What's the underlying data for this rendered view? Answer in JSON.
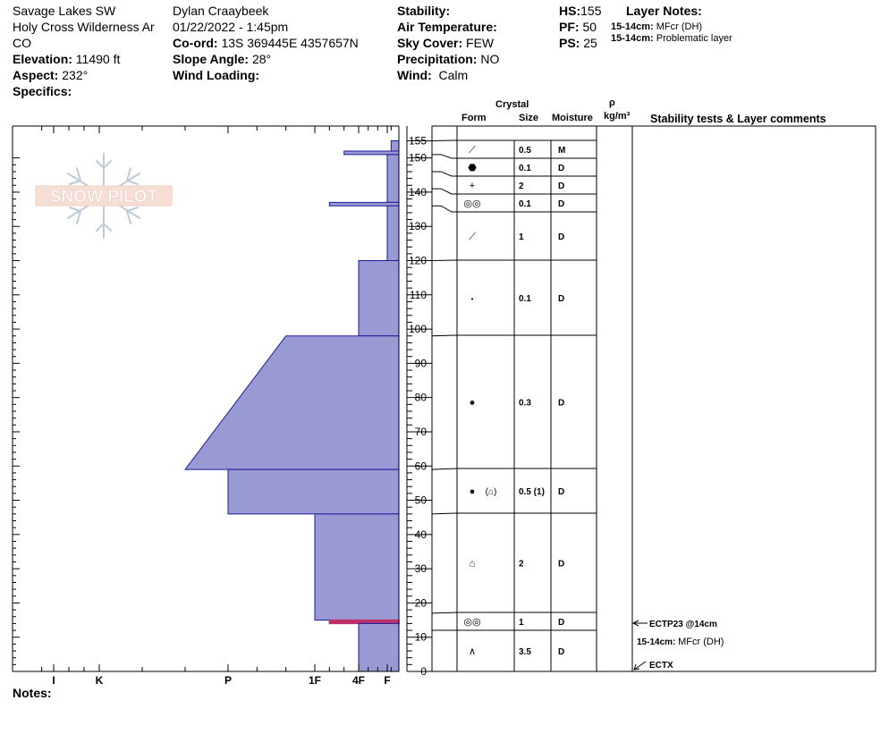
{
  "header": {
    "location": "Savage Lakes SW",
    "range": "Holy Cross Wilderness Ar",
    "state": "CO",
    "elevation_label": "Elevation:",
    "elevation": "11490 ft",
    "aspect_label": "Aspect:",
    "aspect": "232°",
    "specifics_label": "Specifics:",
    "observer": "Dylan Craaybeek",
    "datetime": "01/22/2022 - 1:45pm",
    "coord_label": "Co-ord:",
    "coord": "13S 369445E 4357657N",
    "slope_label": "Slope Angle:",
    "slope": "28°",
    "wind_loading_label": "Wind Loading:",
    "stability_label": "Stability:",
    "air_temp_label": "Air Temperature:",
    "sky_label": "Sky Cover:",
    "sky": "FEW",
    "precip_label": "Precipitation:",
    "precip": "NO",
    "wind_label": "Wind:",
    "wind": "Calm",
    "hs_label": "HS:",
    "hs": "155",
    "pf_label": "PF:",
    "pf": "50",
    "ps_label": "PS:",
    "ps": "25",
    "layer_notes_label": "Layer Notes:",
    "layer_notes": [
      {
        "depth": "15-14cm:",
        "text": "MFcr (DH)"
      },
      {
        "depth": "15-14cm:",
        "text": "Problematic layer"
      }
    ]
  },
  "logo_text": "SNOW PILOT",
  "columns": {
    "crystal": "Crystal",
    "form": "Form",
    "size": "Size",
    "moisture": "Moisture",
    "rho": "ρ",
    "density_unit": "kg/m³",
    "stability": "Stability tests & Layer comments"
  },
  "notes_label": "Notes:",
  "colors": {
    "fill": "#9999d4",
    "stroke": "#1a1a9a",
    "crust": "#c0306a"
  },
  "chart_data": {
    "type": "snow-profile",
    "ylim": [
      0,
      160
    ],
    "y_ticks": [
      0,
      10,
      20,
      30,
      40,
      50,
      60,
      70,
      80,
      90,
      100,
      110,
      120,
      130,
      140,
      150,
      155
    ],
    "hardness_scale": [
      "F-",
      "F",
      "F+",
      "4F-",
      "4F",
      "4F+",
      "1F-",
      "1F",
      "1F+",
      "P-",
      "P",
      "P+",
      "K-",
      "K",
      "K+",
      "I-",
      "I",
      "I+"
    ],
    "hardness_labels": [
      "I",
      "K",
      "P",
      "1F",
      "4F",
      "F"
    ],
    "layers": [
      {
        "top": 155,
        "bottom": 152,
        "hardness": "F-"
      },
      {
        "top": 152,
        "bottom": 151,
        "hardness": "4F+"
      },
      {
        "top": 151,
        "bottom": 137,
        "hardness": "F"
      },
      {
        "top": 137,
        "bottom": 136,
        "hardness": "1F-"
      },
      {
        "top": 136,
        "bottom": 120,
        "hardness": "F"
      },
      {
        "top": 120,
        "bottom": 98,
        "hardness": "4F"
      },
      {
        "top": 98,
        "bottom": 59,
        "hardness": "1F+",
        "hardness_bottom": "P+"
      },
      {
        "top": 59,
        "bottom": 46,
        "hardness": "P"
      },
      {
        "top": 46,
        "bottom": 15,
        "hardness": "1F"
      },
      {
        "top": 15,
        "bottom": 14,
        "hardness": "1F-",
        "crust": true
      },
      {
        "top": 14,
        "bottom": 0,
        "hardness": "4F"
      }
    ],
    "crystal_rows": [
      {
        "top": 155,
        "bottom": 151,
        "form": "decomposing",
        "size": "0.5",
        "moisture": "M"
      },
      {
        "top": 151,
        "bottom": 146,
        "form": "melt-freeze-crust",
        "size": "0.1",
        "moisture": "D"
      },
      {
        "top": 146,
        "bottom": 141,
        "form": "new-snow",
        "size": "2",
        "moisture": "D"
      },
      {
        "top": 141,
        "bottom": 136,
        "form": "melt-forms",
        "size": "0.1",
        "moisture": "D"
      },
      {
        "top": 136,
        "bottom": 120,
        "form": "decomposing",
        "size": "1",
        "moisture": "D"
      },
      {
        "top": 120,
        "bottom": 98,
        "form": "small-rounds",
        "size": "0.1",
        "moisture": "D"
      },
      {
        "top": 98,
        "bottom": 59,
        "form": "rounds",
        "size": "0.3",
        "moisture": "D"
      },
      {
        "top": 59,
        "bottom": 46,
        "form": "rounds-faceting",
        "size": "0.5 (1)",
        "moisture": "D",
        "secondary": "(⌂)"
      },
      {
        "top": 46,
        "bottom": 17,
        "form": "faceted",
        "size": "2",
        "moisture": "D"
      },
      {
        "top": 17,
        "bottom": 12,
        "form": "melt-forms",
        "size": "1",
        "moisture": "D"
      },
      {
        "top": 12,
        "bottom": 0,
        "form": "depth-hoar",
        "size": "3.5",
        "moisture": "D"
      }
    ],
    "form_symbols": {
      "decomposing": "⟋",
      "melt-freeze-crust": "⬣",
      "new-snow": "+",
      "melt-forms": "◎◎",
      "small-rounds": "•",
      "rounds": "●",
      "rounds-faceting": "●",
      "faceted": "⌂",
      "depth-hoar": "∧"
    },
    "stability_notes": [
      {
        "text": "ECTP23 @14cm",
        "arrow": true
      },
      {
        "depth": "15-14cm:",
        "text": "MFcr (DH)"
      },
      {
        "text": "ECTX",
        "arrow": true
      }
    ]
  }
}
